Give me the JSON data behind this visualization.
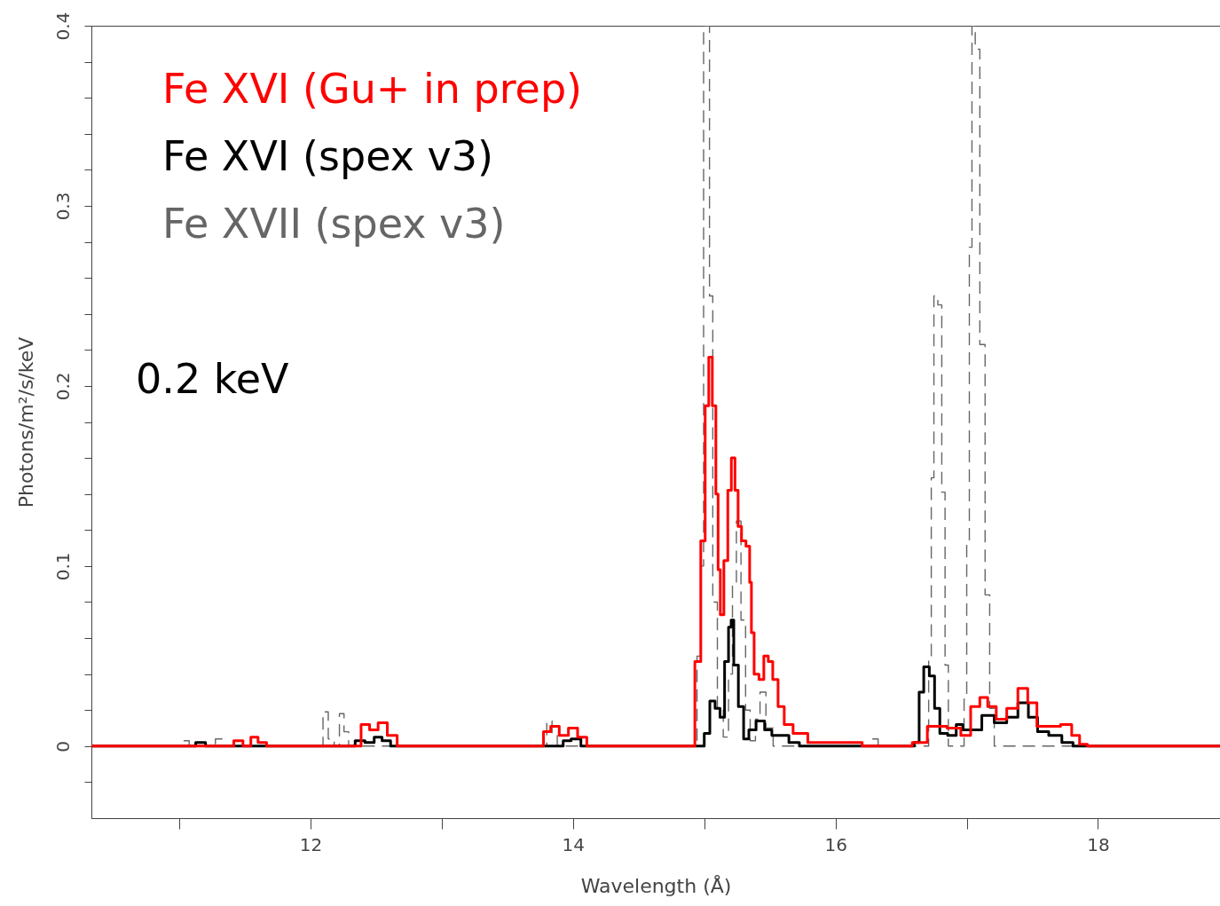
{
  "chart_data": {
    "type": "step",
    "xlabel": "Wavelength (Å)",
    "ylabel": "Photons/m²/s/keV",
    "xlim": [
      10.33,
      18.93
    ],
    "ylim": [
      -0.04,
      0.4
    ],
    "xticks": [
      {
        "value": 11,
        "label": null
      },
      12,
      {
        "value": 13,
        "label": null
      },
      14,
      {
        "value": 15,
        "label": null
      },
      16,
      {
        "value": 17,
        "label": null
      },
      18
    ],
    "yticks": [
      {
        "value": -0.02,
        "label": null
      },
      0,
      {
        "value": 0.02,
        "label": null
      },
      {
        "value": 0.04,
        "label": null
      },
      {
        "value": 0.06,
        "label": null
      },
      {
        "value": 0.08,
        "label": null
      },
      0.1,
      {
        "value": 0.12,
        "label": null
      },
      {
        "value": 0.14,
        "label": null
      },
      {
        "value": 0.16,
        "label": null
      },
      {
        "value": 0.18,
        "label": null
      },
      0.2,
      {
        "value": 0.22,
        "label": null
      },
      {
        "value": 0.24,
        "label": null
      },
      {
        "value": 0.26,
        "label": null
      },
      {
        "value": 0.28,
        "label": null
      },
      0.3,
      {
        "value": 0.32,
        "label": null
      },
      {
        "value": 0.34,
        "label": null
      },
      {
        "value": 0.36,
        "label": null
      },
      {
        "value": 0.38,
        "label": null
      },
      0.4
    ],
    "grid": false,
    "legend": "top left",
    "annotations": [
      "0.2 keV"
    ],
    "series": [
      {
        "name": "Fe XVII (spex v3)",
        "color": "#666666",
        "line_style": "dashed",
        "x": [
          10.33,
          11.0,
          11.05,
          11.1,
          11.25,
          11.3,
          11.35,
          12.08,
          12.11,
          12.16,
          12.2,
          12.24,
          12.27,
          12.31,
          12.35,
          13.78,
          13.82,
          13.86,
          13.9,
          14.93,
          14.96,
          14.99,
          15.0,
          15.03,
          15.05,
          15.08,
          15.12,
          15.17,
          15.2,
          15.23,
          15.26,
          15.3,
          15.33,
          15.37,
          15.41,
          15.44,
          15.5,
          15.55,
          16.25,
          16.3,
          16.35,
          16.7,
          16.72,
          16.74,
          16.76,
          16.8,
          16.82,
          16.85,
          16.87,
          16.97,
          16.99,
          17.01,
          17.03,
          17.05,
          17.08,
          17.12,
          17.16,
          17.19,
          17.23,
          18.93
        ],
        "values": [
          0,
          0,
          0.003,
          0,
          0,
          0.004,
          0,
          0,
          0.019,
          0.004,
          0,
          0.018,
          0.008,
          0,
          0,
          0,
          0.014,
          0.006,
          0,
          0,
          0.05,
          0.1,
          0.4,
          0.4,
          0.25,
          0.08,
          0.02,
          0.005,
          0.04,
          0.09,
          0.125,
          0.07,
          0.02,
          0.003,
          0.015,
          0.03,
          0.01,
          0,
          0,
          0.004,
          0,
          0,
          0.048,
          0.149,
          0.25,
          0.245,
          0.141,
          0.045,
          0,
          0,
          0.026,
          0.114,
          0.277,
          0.4,
          0.387,
          0.223,
          0.084,
          0.021,
          0,
          0
        ]
      },
      {
        "name": "Fe XVI (spex v3)",
        "color": "#000000",
        "x": [
          10.33,
          11.1,
          11.15,
          11.25,
          12.3,
          12.38,
          12.45,
          12.52,
          12.57,
          12.65,
          13.9,
          13.95,
          14.02,
          14.1,
          14.98,
          15.02,
          15.065,
          15.1,
          15.14,
          15.17,
          15.2,
          15.21,
          15.24,
          15.28,
          15.32,
          15.36,
          15.43,
          15.49,
          15.54,
          15.6,
          15.69,
          15.76,
          16.58,
          16.62,
          16.655,
          16.69,
          16.74,
          16.77,
          16.82,
          16.89,
          16.95,
          16.99,
          17.07,
          17.16,
          17.26,
          17.35,
          17.43,
          17.51,
          17.57,
          17.68,
          17.77,
          17.85,
          18.93
        ],
        "values": [
          0,
          0,
          0.002,
          0,
          0,
          0.003,
          0.002,
          0.005,
          0.003,
          0,
          0,
          0.003,
          0.004,
          0,
          0,
          0.007,
          0.025,
          0.021,
          0.016,
          0.047,
          0.066,
          0.07,
          0.045,
          0.022,
          0.004,
          0.009,
          0.014,
          0.009,
          0.006,
          0.006,
          0.002,
          0,
          0,
          0.002,
          0.03,
          0.044,
          0.039,
          0.021,
          0.007,
          0.006,
          0.012,
          0.009,
          0.009,
          0.017,
          0.013,
          0.016,
          0.024,
          0.016,
          0.008,
          0.006,
          0.002,
          0,
          0
        ]
      },
      {
        "name": "Fe XVI (Gu+ in prep)",
        "color": "#ff0000",
        "x": [
          10.33,
          11.38,
          11.45,
          11.52,
          11.57,
          11.63,
          11.7,
          12.35,
          12.42,
          12.48,
          12.55,
          12.62,
          12.7,
          13.75,
          13.8,
          13.86,
          13.93,
          14.0,
          14.07,
          14.14,
          14.9,
          14.957,
          14.99,
          15.024,
          15.045,
          15.078,
          15.099,
          15.112,
          15.133,
          15.166,
          15.193,
          15.22,
          15.248,
          15.268,
          15.3,
          15.336,
          15.356,
          15.363,
          15.397,
          15.437,
          15.471,
          15.505,
          15.539,
          15.586,
          15.633,
          15.721,
          15.857,
          16.55,
          16.62,
          16.78,
          16.92,
          16.99,
          17.07,
          17.13,
          17.19,
          17.26,
          17.35,
          17.43,
          17.5,
          17.57,
          17.66,
          17.77,
          17.83,
          17.89,
          17.95,
          18.93
        ],
        "values": [
          0,
          0,
          0.003,
          0,
          0.005,
          0.002,
          0,
          0,
          0.012,
          0.009,
          0.013,
          0.006,
          0,
          0,
          0.008,
          0.011,
          0.006,
          0.01,
          0.005,
          0,
          0,
          0.047,
          0.114,
          0.189,
          0.216,
          0.189,
          0.14,
          0.098,
          0.073,
          0.103,
          0.142,
          0.16,
          0.142,
          0.122,
          0.114,
          0.111,
          0.091,
          0.063,
          0.04,
          0.037,
          0.05,
          0.047,
          0.037,
          0.022,
          0.012,
          0.007,
          0.002,
          0,
          0.002,
          0.011,
          0.01,
          0.006,
          0.022,
          0.027,
          0.022,
          0.015,
          0.021,
          0.032,
          0.024,
          0.011,
          0.011,
          0.012,
          0.006,
          0.001,
          0,
          0
        ]
      }
    ]
  }
}
